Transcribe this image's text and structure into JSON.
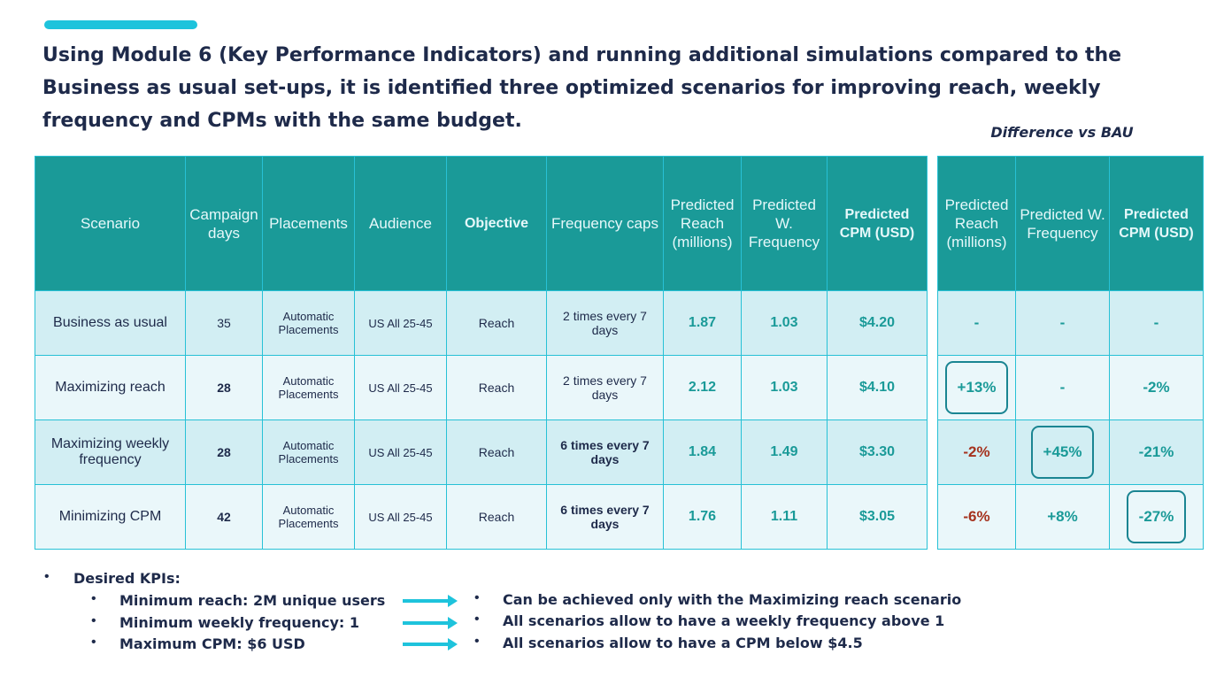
{
  "headline": "Using Module 6 (Key Performance Indicators) and running additional simulations compared to the Business as usual set-ups, it is identified three optimized scenarios for improving reach, weekly frequency and CPMs with the same budget.",
  "diff_caption": "Difference vs BAU",
  "main_table": {
    "headers": [
      "Scenario",
      "Campaign days",
      "Placements",
      "Audience",
      "Objective",
      "Frequency caps",
      "Predicted Reach (millions)",
      "Predicted W. Frequency",
      "Predicted CPM (USD)"
    ],
    "rows": [
      {
        "scenario": "Business as usual",
        "days": "35",
        "placements": "Automatic Placements",
        "audience": "US All 25-45",
        "objective": "Reach",
        "freq_cap": "2 times every 7 days",
        "reach": "1.87",
        "wfreq": "1.03",
        "cpm": "$4.20"
      },
      {
        "scenario": "Maximizing reach",
        "days": "28",
        "placements": "Automatic Placements",
        "audience": "US All 25-45",
        "objective": "Reach",
        "freq_cap": "2 times every 7 days",
        "reach": "2.12",
        "wfreq": "1.03",
        "cpm": "$4.10"
      },
      {
        "scenario": "Maximizing weekly frequency",
        "days": "28",
        "placements": "Automatic Placements",
        "audience": "US All 25-45",
        "objective": "Reach",
        "freq_cap": "6 times every 7 days",
        "reach": "1.84",
        "wfreq": "1.49",
        "cpm": "$3.30"
      },
      {
        "scenario": "Minimizing CPM",
        "days": "42",
        "placements": "Automatic Placements",
        "audience": "US All 25-45",
        "objective": "Reach",
        "freq_cap": "6 times every 7 days",
        "reach": "1.76",
        "wfreq": "1.11",
        "cpm": "$3.05"
      }
    ]
  },
  "diff_table": {
    "headers": [
      "Predicted Reach (millions)",
      "Predicted W. Frequency",
      "Predicted CPM (USD)"
    ],
    "rows": [
      [
        "-",
        "-",
        "-"
      ],
      [
        "+13%",
        "-",
        "-2%"
      ],
      [
        "-2%",
        "+45%",
        "-21%"
      ],
      [
        "-6%",
        "+8%",
        "-27%"
      ]
    ]
  },
  "kpis": {
    "title": "Desired KPIs:",
    "items": [
      "Minimum reach: 2M unique users",
      "Minimum weekly frequency: 1",
      "Maximum CPM: $6 USD"
    ],
    "results": [
      "Can be achieved only with the Maximizing reach scenario",
      "All scenarios allow to have a weekly frequency above 1",
      "All scenarios allow to have a CPM below $4.5"
    ]
  },
  "colors": {
    "header_teal": "#1a9a98",
    "accent_cyan": "#1ec3dc",
    "negative_red": "#a5321e",
    "navy_text": "#1e2a4a"
  }
}
